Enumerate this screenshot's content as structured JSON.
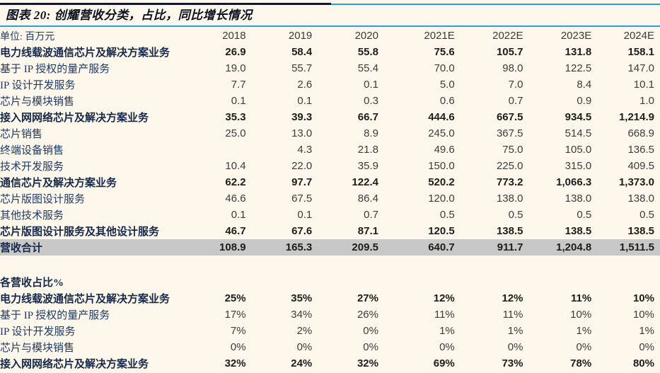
{
  "header": {
    "title": "图表 20: 创耀营收分类，占比，同比增长情况",
    "unit_label": "单位: 百万元"
  },
  "columns": [
    "2018",
    "2019",
    "2020",
    "2021E",
    "2022E",
    "2023E",
    "2024E"
  ],
  "revenue_rows": [
    {
      "label": "电力线载波通信芯片及解决方案业务",
      "bold": true,
      "values": [
        "26.9",
        "58.4",
        "55.8",
        "75.6",
        "105.7",
        "131.8",
        "158.1"
      ]
    },
    {
      "label": "基于 IP 授权的量产服务",
      "bold": false,
      "values": [
        "19.0",
        "55.7",
        "55.4",
        "70.0",
        "98.0",
        "122.5",
        "147.0"
      ]
    },
    {
      "label": "IP 设计开发服务",
      "bold": false,
      "values": [
        "7.7",
        "2.6",
        "0.1",
        "5.0",
        "7.0",
        "8.4",
        "10.1"
      ]
    },
    {
      "label": "芯片与模块销售",
      "bold": false,
      "values": [
        "0.1",
        "0.1",
        "0.3",
        "0.6",
        "0.7",
        "0.9",
        "1.0"
      ]
    },
    {
      "label": "接入网网络芯片及解决方案业务",
      "bold": true,
      "values": [
        "35.3",
        "39.3",
        "66.7",
        "444.6",
        "667.5",
        "934.5",
        "1,214.9"
      ]
    },
    {
      "label": "芯片销售",
      "bold": false,
      "values": [
        "25.0",
        "13.0",
        "8.9",
        "245.0",
        "367.5",
        "514.5",
        "668.9"
      ]
    },
    {
      "label": "终端设备销售",
      "bold": false,
      "values": [
        "",
        "4.3",
        "21.8",
        "49.6",
        "75.0",
        "105.0",
        "136.5"
      ]
    },
    {
      "label": "技术开发服务",
      "bold": false,
      "values": [
        "10.4",
        "22.0",
        "35.9",
        "150.0",
        "225.0",
        "315.0",
        "409.5"
      ]
    },
    {
      "label": "通信芯片及解决方案业务",
      "bold": true,
      "values": [
        "62.2",
        "97.7",
        "122.4",
        "520.2",
        "773.2",
        "1,066.3",
        "1,373.0"
      ]
    },
    {
      "label": "芯片版图设计服务",
      "bold": false,
      "values": [
        "46.6",
        "67.5",
        "86.4",
        "120.0",
        "138.0",
        "138.0",
        "138.0"
      ]
    },
    {
      "label": "其他技术服务",
      "bold": false,
      "values": [
        "0.1",
        "0.1",
        "0.7",
        "0.5",
        "0.5",
        "0.5",
        "0.5"
      ]
    },
    {
      "label": "芯片版图设计服务及其他设计服务",
      "bold": true,
      "values": [
        "46.7",
        "67.6",
        "87.1",
        "120.5",
        "138.5",
        "138.5",
        "138.5"
      ]
    },
    {
      "label": "营收合计",
      "bold": true,
      "total": true,
      "values": [
        "108.9",
        "165.3",
        "209.5",
        "640.7",
        "911.7",
        "1,204.8",
        "1,511.5"
      ]
    }
  ],
  "share_section": {
    "heading": "各营收占比%",
    "rows": [
      {
        "label": "电力线载波通信芯片及解决方案业务",
        "bold": true,
        "values": [
          "25%",
          "35%",
          "27%",
          "12%",
          "12%",
          "11%",
          "10%"
        ]
      },
      {
        "label": "基于 IP 授权的量产服务",
        "bold": false,
        "values": [
          "17%",
          "34%",
          "26%",
          "11%",
          "11%",
          "10%",
          "10%"
        ]
      },
      {
        "label": "IP 设计开发服务",
        "bold": false,
        "values": [
          "7%",
          "2%",
          "0%",
          "1%",
          "1%",
          "1%",
          "1%"
        ]
      },
      {
        "label": "芯片与模块销售",
        "bold": false,
        "values": [
          "0%",
          "0%",
          "0%",
          "0%",
          "0%",
          "0%",
          "0%"
        ]
      },
      {
        "label": "接入网网络芯片及解决方案业务",
        "bold": true,
        "values": [
          "32%",
          "24%",
          "32%",
          "69%",
          "73%",
          "78%",
          "80%"
        ]
      }
    ]
  },
  "colors": {
    "background": "#FDF8EB",
    "accent_blue": "#2B9FD9",
    "top_rule_dark": "#15182B",
    "label_navy": "#1E3A66",
    "total_row_bg": "#C8C8C8"
  }
}
